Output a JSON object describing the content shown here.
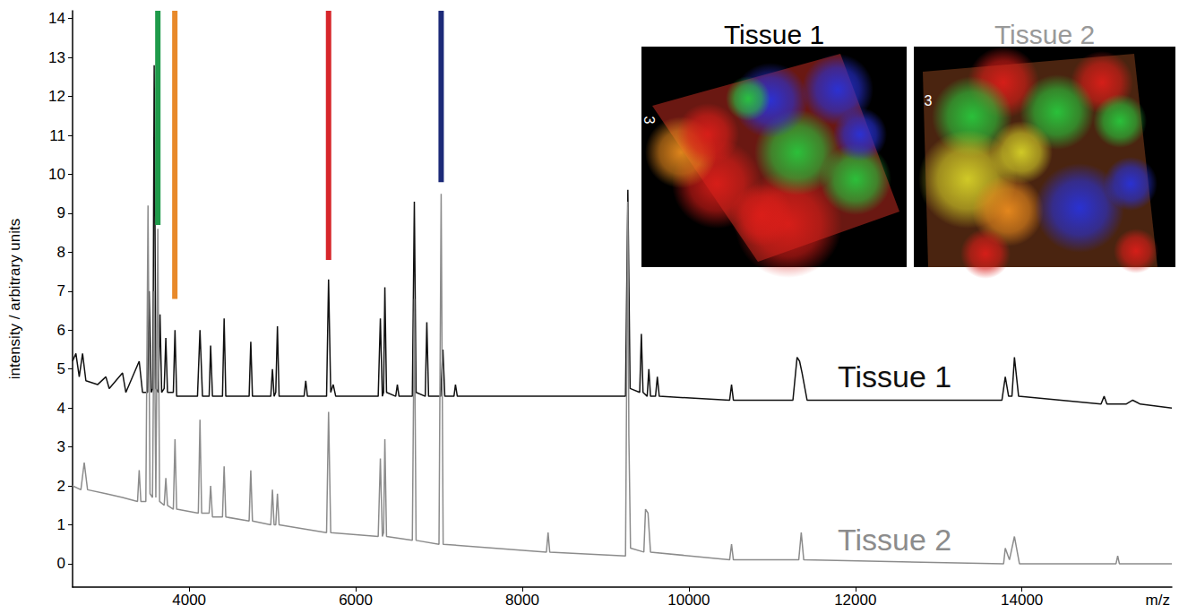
{
  "chart_data": {
    "type": "line",
    "xlabel": "m/z",
    "ylabel": "intensity / arbitrary units",
    "xlim": [
      2600,
      15800
    ],
    "ylim": [
      -0.6,
      14.2
    ],
    "xticks": [
      4000,
      6000,
      8000,
      10000,
      12000,
      14000
    ],
    "yticks": [
      0,
      1,
      2,
      3,
      4,
      5,
      6,
      7,
      8,
      9,
      10,
      11,
      12,
      13,
      14
    ],
    "grid": false,
    "series": [
      {
        "name": "Tissue 1",
        "color": "#111111",
        "x": [
          2600,
          2640,
          2680,
          2720,
          2760,
          2900,
          3000,
          3040,
          3200,
          3240,
          3400,
          3440,
          3500,
          3520,
          3545,
          3565,
          3580,
          3600,
          3630,
          3650,
          3670,
          3700,
          3720,
          3740,
          3810,
          3830,
          3850,
          4100,
          4130,
          4160,
          4240,
          4258,
          4280,
          4400,
          4420,
          4440,
          4720,
          4740,
          4760,
          4980,
          5000,
          5020,
          5040,
          5060,
          5080,
          5380,
          5400,
          5420,
          5650,
          5674,
          5700,
          5730,
          5760,
          6270,
          6296,
          6320,
          6335,
          6350,
          6370,
          6480,
          6500,
          6520,
          6680,
          6704,
          6725,
          6835,
          6854,
          6875,
          7020,
          7047,
          7070,
          7180,
          7198,
          7220,
          9240,
          9268,
          9295,
          9410,
          9430,
          9450,
          9500,
          9520,
          9540,
          9600,
          9622,
          9645,
          10490,
          10513,
          10535,
          11250,
          11300,
          11330,
          11360,
          11420,
          13760,
          13800,
          13840,
          13880,
          13910,
          13960,
          14950,
          14987,
          15020,
          15250,
          15330,
          15420,
          15800
        ],
        "values": [
          5.2,
          5.4,
          4.8,
          5.4,
          4.7,
          4.6,
          4.8,
          4.5,
          4.9,
          4.4,
          5.2,
          4.4,
          4.4,
          7.0,
          4.4,
          4.5,
          12.8,
          4.5,
          4.4,
          6.4,
          4.4,
          4.5,
          5.8,
          4.4,
          4.4,
          6.0,
          4.3,
          4.3,
          6.0,
          4.3,
          4.3,
          5.6,
          4.3,
          4.3,
          6.3,
          4.3,
          4.3,
          5.7,
          4.3,
          4.3,
          5.0,
          4.3,
          4.4,
          6.1,
          4.3,
          4.3,
          4.7,
          4.3,
          4.3,
          7.3,
          4.4,
          4.6,
          4.3,
          4.3,
          6.3,
          4.3,
          4.4,
          7.1,
          4.4,
          4.3,
          4.6,
          4.3,
          4.3,
          9.3,
          4.4,
          4.3,
          6.2,
          4.3,
          4.3,
          5.5,
          4.3,
          4.3,
          4.6,
          4.3,
          4.3,
          9.6,
          4.5,
          4.4,
          5.9,
          4.4,
          4.3,
          5.0,
          4.3,
          4.3,
          4.8,
          4.3,
          4.2,
          4.6,
          4.2,
          4.2,
          5.3,
          5.2,
          4.9,
          4.2,
          4.2,
          4.8,
          4.3,
          4.3,
          5.3,
          4.3,
          4.1,
          4.3,
          4.1,
          4.1,
          4.2,
          4.1,
          4.0
        ]
      },
      {
        "name": "Tissue 2",
        "color": "#8c8c8c",
        "x": [
          2600,
          2700,
          2740,
          2780,
          3000,
          3200,
          3380,
          3400,
          3420,
          3480,
          3506,
          3530,
          3560,
          3580,
          3600,
          3624,
          3645,
          3700,
          3720,
          3740,
          3810,
          3830,
          3850,
          4110,
          4130,
          4150,
          4240,
          4258,
          4280,
          4400,
          4420,
          4440,
          4720,
          4740,
          4760,
          4980,
          5000,
          5020,
          5040,
          5060,
          5080,
          5650,
          5674,
          5700,
          6270,
          6296,
          6320,
          6335,
          6350,
          6370,
          6680,
          6704,
          6725,
          7000,
          7026,
          7050,
          8290,
          8310,
          8330,
          9240,
          9268,
          9280,
          9300,
          9460,
          9480,
          9510,
          9540,
          10490,
          10513,
          10535,
          11320,
          11350,
          11380,
          13780,
          13800,
          13850,
          13910,
          13970,
          15130,
          15150,
          15170,
          15800
        ],
        "values": [
          2.0,
          1.9,
          2.6,
          1.9,
          1.8,
          1.7,
          1.6,
          2.4,
          1.6,
          1.6,
          9.2,
          1.8,
          1.7,
          7.0,
          1.7,
          8.6,
          1.6,
          1.5,
          2.2,
          1.5,
          1.4,
          3.2,
          1.4,
          1.3,
          3.7,
          1.3,
          1.3,
          2.0,
          1.2,
          1.2,
          2.5,
          1.2,
          1.1,
          2.4,
          1.1,
          1.0,
          1.9,
          1.0,
          1.0,
          1.8,
          1.0,
          0.8,
          3.9,
          0.8,
          0.7,
          2.7,
          0.7,
          0.8,
          3.2,
          0.7,
          0.6,
          6.8,
          0.6,
          0.5,
          9.5,
          0.5,
          0.3,
          0.8,
          0.3,
          0.2,
          9.3,
          3.3,
          0.4,
          0.3,
          1.4,
          1.3,
          0.3,
          0.1,
          0.5,
          0.1,
          0.1,
          0.8,
          0.1,
          0.0,
          0.4,
          0.1,
          0.7,
          0.0,
          0.0,
          0.2,
          0.0,
          0.0
        ]
      }
    ],
    "highlights": [
      {
        "x": 3624,
        "ymin": 8.7,
        "color": "#1f9a4a"
      },
      {
        "x": 3828,
        "ymin": 6.8,
        "color": "#e8892a"
      },
      {
        "x": 5674,
        "ymin": 7.8,
        "color": "#d7262b"
      },
      {
        "x": 7026,
        "ymin": 9.8,
        "color": "#1c2a78"
      }
    ],
    "insets": [
      {
        "title": "Tissue 1",
        "color": "#000000",
        "label": "3"
      },
      {
        "title": "Tissue 2",
        "color": "#999999",
        "label": "3"
      }
    ]
  }
}
